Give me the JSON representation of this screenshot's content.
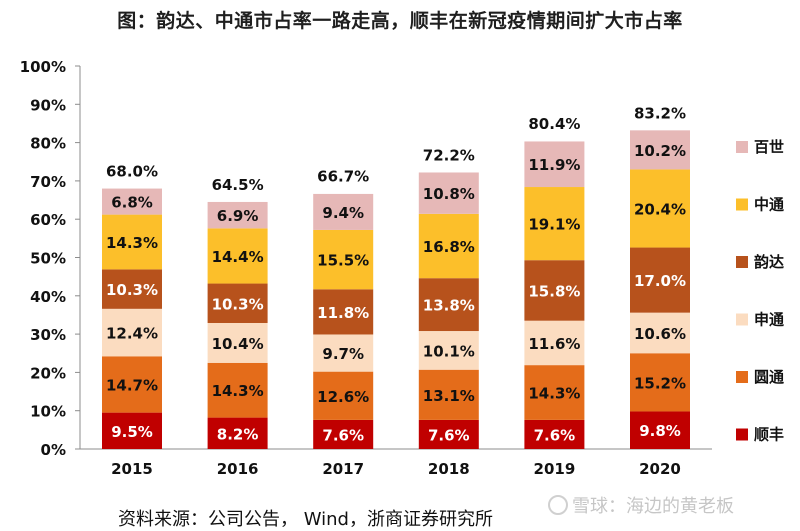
{
  "chart_data": {
    "type": "bar",
    "stacked": true,
    "title": "图：韵达、中通市占率一路走高，顺丰在新冠疫情期间扩大市占率",
    "categories": [
      "2015",
      "2016",
      "2017",
      "2018",
      "2019",
      "2020"
    ],
    "ylim": [
      0,
      100
    ],
    "yticks": [
      "0%",
      "10%",
      "20%",
      "30%",
      "40%",
      "50%",
      "60%",
      "70%",
      "80%",
      "90%",
      "100%"
    ],
    "grid": false,
    "legend_position": "right",
    "series": [
      {
        "name": "顺丰",
        "color": "#c00000",
        "label_color": "#ffffff",
        "values": [
          9.5,
          8.2,
          7.6,
          7.6,
          7.6,
          9.8
        ],
        "labels": [
          "9.5%",
          "8.2%",
          "7.6%",
          "7.6%",
          "7.6%",
          "9.8%"
        ]
      },
      {
        "name": "圆通",
        "color": "#e46c1a",
        "label_color": "#111111",
        "values": [
          14.7,
          14.3,
          12.6,
          13.1,
          14.3,
          15.2
        ],
        "labels": [
          "14.7%",
          "14.3%",
          "12.6%",
          "13.1%",
          "14.3%",
          "15.2%"
        ]
      },
      {
        "name": "申通",
        "color": "#fbdcc0",
        "label_color": "#111111",
        "values": [
          12.4,
          10.4,
          9.7,
          10.1,
          11.6,
          10.6
        ],
        "labels": [
          "12.4%",
          "10.4%",
          "9.7%",
          "10.1%",
          "11.6%",
          "10.6%"
        ]
      },
      {
        "name": "韵达",
        "color": "#b7521c",
        "label_color": "#ffffff",
        "values": [
          10.3,
          10.3,
          11.8,
          13.8,
          15.8,
          17.0
        ],
        "labels": [
          "10.3%",
          "10.3%",
          "11.8%",
          "13.8%",
          "15.8%",
          "17.0%"
        ]
      },
      {
        "name": "中通",
        "color": "#fcbf2a",
        "label_color": "#111111",
        "values": [
          14.3,
          14.4,
          15.5,
          16.8,
          19.1,
          20.4
        ],
        "labels": [
          "14.3%",
          "14.4%",
          "15.5%",
          "16.8%",
          "19.1%",
          "20.4%"
        ]
      },
      {
        "name": "百世",
        "color": "#e6b8b7",
        "label_color": "#111111",
        "values": [
          6.8,
          6.9,
          9.4,
          10.8,
          11.9,
          10.2
        ],
        "labels": [
          "6.8%",
          "6.9%",
          "9.4%",
          "10.8%",
          "11.9%",
          "10.2%"
        ]
      }
    ],
    "totals": [
      68.0,
      64.5,
      66.7,
      72.2,
      80.4,
      83.2
    ],
    "total_labels": [
      "68.0%",
      "64.5%",
      "66.7%",
      "72.2%",
      "80.4%",
      "83.2%"
    ],
    "legend_order": [
      "百世",
      "中通",
      "韵达",
      "申通",
      "圆通",
      "顺丰"
    ]
  },
  "source": "资料来源：公司公告，  Wind，浙商证券研究所",
  "watermark": "雪球：海边的黄老板"
}
